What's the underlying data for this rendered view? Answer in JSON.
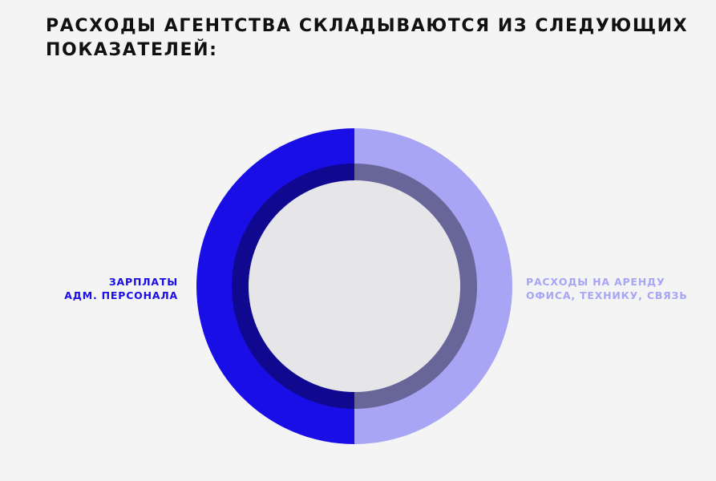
{
  "chart_data": {
    "type": "pie",
    "title": "РАСХОДЫ АГЕНТСТВА СКЛАДЫВАЮТСЯ ИЗ СЛЕДУЮЩИХ\nПОКАЗАТЕЛЕЙ:",
    "categories": [
      "ЗАРПЛАТЫ\nАДМ. ПЕРСОНАЛА",
      "РАСХОДЫ НА АРЕНДУ\nОФИСА, ТЕХНИКУ, СВЯЗЬ"
    ],
    "values": [
      50,
      50
    ],
    "colors": [
      "#1a0ee6",
      "#a8a5f5"
    ]
  }
}
